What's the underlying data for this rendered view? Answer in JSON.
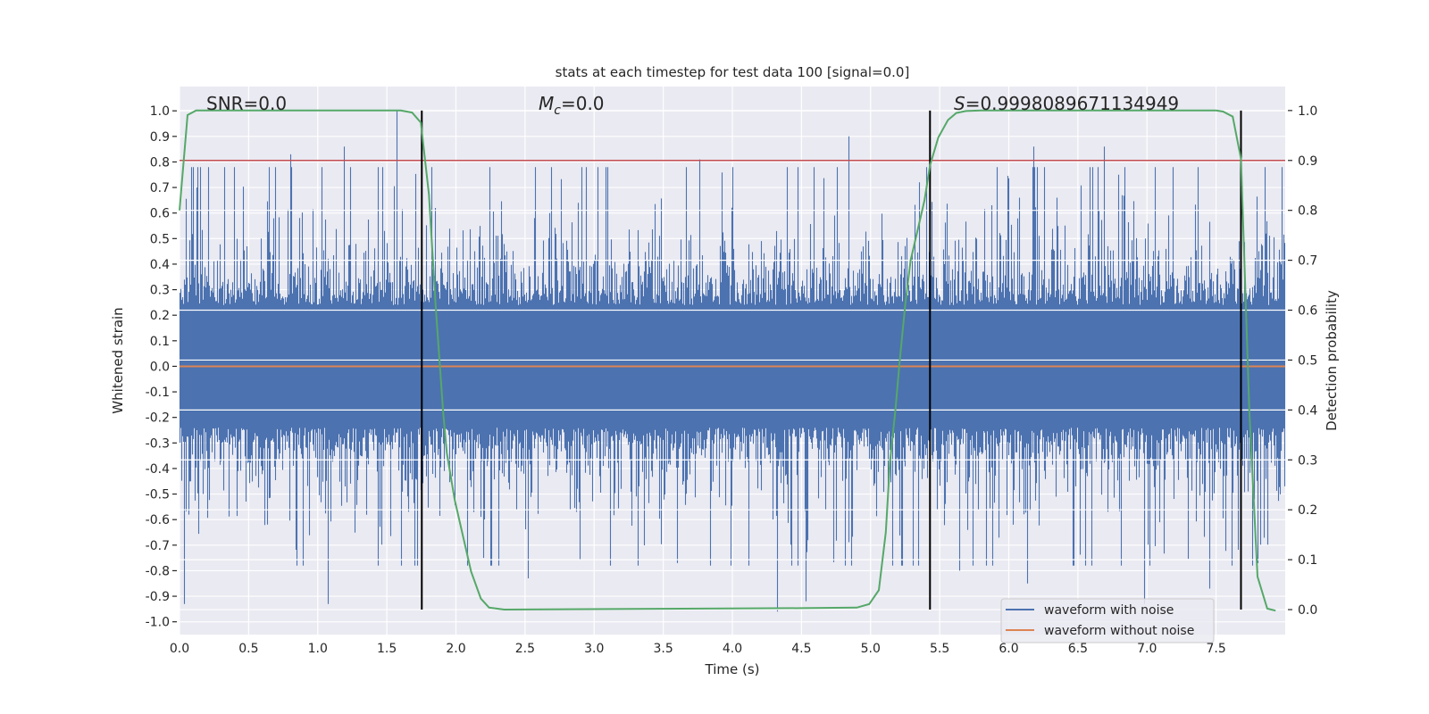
{
  "chart_data": {
    "type": "line",
    "title": "stats at each timestep for test data 100 [signal=0.0]",
    "xlabel": "Time (s)",
    "ylabel": "Whitened strain",
    "ylabel_right": "Detection probability",
    "xlim": [
      0,
      8.0
    ],
    "ylim": [
      -1.05,
      1.095
    ],
    "ylim_right": [
      -0.05,
      1.048
    ],
    "grid": true,
    "xticks": [
      "0.0",
      "0.5",
      "1.0",
      "1.5",
      "2.0",
      "2.5",
      "3.0",
      "3.5",
      "4.0",
      "4.5",
      "5.0",
      "5.5",
      "6.0",
      "6.5",
      "7.0",
      "7.5"
    ],
    "yticks": [
      "1.0",
      "0.9",
      "0.8",
      "0.7",
      "0.6",
      "0.5",
      "0.4",
      "0.3",
      "0.2",
      "0.1",
      "0.0",
      "-0.1",
      "-0.2",
      "-0.3",
      "-0.4",
      "-0.5",
      "-0.6",
      "-0.7",
      "-0.8",
      "-0.9",
      "-1.0"
    ],
    "yticks_right": [
      "1.0",
      "0.9",
      "0.8",
      "0.7",
      "0.6",
      "0.5",
      "0.4",
      "0.3",
      "0.2",
      "0.1",
      "0.0"
    ],
    "annotations": {
      "snr": "SNR=0.0",
      "mc_symbol": "M",
      "mc_sub": "c",
      "mc_value": "=0.0",
      "s_symbol": "S",
      "s_value": "=0.9998089671134949"
    },
    "legend": {
      "placement": "lower-right",
      "entries": [
        "waveform with noise",
        "waveform without noise"
      ]
    },
    "colors": {
      "noisy": "#4c72b0",
      "clean": "#dd8452",
      "probability": "#55a868",
      "threshold": "#c44e52",
      "markers": "#000000",
      "background": "#eaeaf2"
    },
    "waveform_with_noise": {
      "seed": 100,
      "base_amplitude": 0.24,
      "spike_scale": 0.13,
      "peaks": [
        [
          0.03,
          -0.93
        ],
        [
          0.8,
          0.83
        ],
        [
          1.07,
          -0.93
        ],
        [
          1.19,
          0.86
        ],
        [
          1.57,
          1.0
        ],
        [
          2.52,
          -0.83
        ],
        [
          3.6,
          -0.77
        ],
        [
          3.76,
          0.81
        ],
        [
          4.32,
          -0.96
        ],
        [
          4.53,
          -0.92
        ],
        [
          4.84,
          0.9
        ],
        [
          5.64,
          -0.8
        ],
        [
          6.13,
          -0.85
        ],
        [
          6.18,
          0.86
        ],
        [
          6.69,
          0.86
        ],
        [
          6.98,
          -0.93
        ],
        [
          7.45,
          -0.87
        ],
        [
          0.12,
          0.7
        ],
        [
          2.2,
          -0.75
        ],
        [
          5.35,
          0.72
        ]
      ]
    },
    "waveform_without_noise": {
      "value": 0.0
    },
    "threshold": 0.9,
    "detection_markers": [
      1.753,
      5.43,
      7.68
    ],
    "detection_probability": [
      [
        0.0,
        0.8
      ],
      [
        0.058,
        0.991
      ],
      [
        0.12,
        1.0
      ],
      [
        1.6,
        1.0
      ],
      [
        1.683,
        0.996
      ],
      [
        1.746,
        0.976
      ],
      [
        1.805,
        0.831
      ],
      [
        1.854,
        0.606
      ],
      [
        1.908,
        0.393
      ],
      [
        1.934,
        0.314
      ],
      [
        1.99,
        0.221
      ],
      [
        2.11,
        0.076
      ],
      [
        2.18,
        0.022
      ],
      [
        2.24,
        0.004
      ],
      [
        2.35,
        0.0
      ],
      [
        4.5,
        0.003
      ],
      [
        4.9,
        0.004
      ],
      [
        4.99,
        0.011
      ],
      [
        5.06,
        0.039
      ],
      [
        5.11,
        0.155
      ],
      [
        5.14,
        0.295
      ],
      [
        5.18,
        0.401
      ],
      [
        5.21,
        0.495
      ],
      [
        5.25,
        0.608
      ],
      [
        5.29,
        0.7
      ],
      [
        5.34,
        0.76
      ],
      [
        5.39,
        0.82
      ],
      [
        5.43,
        0.89
      ],
      [
        5.49,
        0.946
      ],
      [
        5.56,
        0.981
      ],
      [
        5.62,
        0.995
      ],
      [
        5.69,
        0.999
      ],
      [
        5.8,
        1.0
      ],
      [
        7.5,
        1.0
      ],
      [
        7.55,
        0.998
      ],
      [
        7.62,
        0.988
      ],
      [
        7.68,
        0.903
      ],
      [
        7.74,
        0.4
      ],
      [
        7.8,
        0.066
      ],
      [
        7.87,
        0.002
      ],
      [
        7.93,
        -0.002
      ]
    ]
  }
}
